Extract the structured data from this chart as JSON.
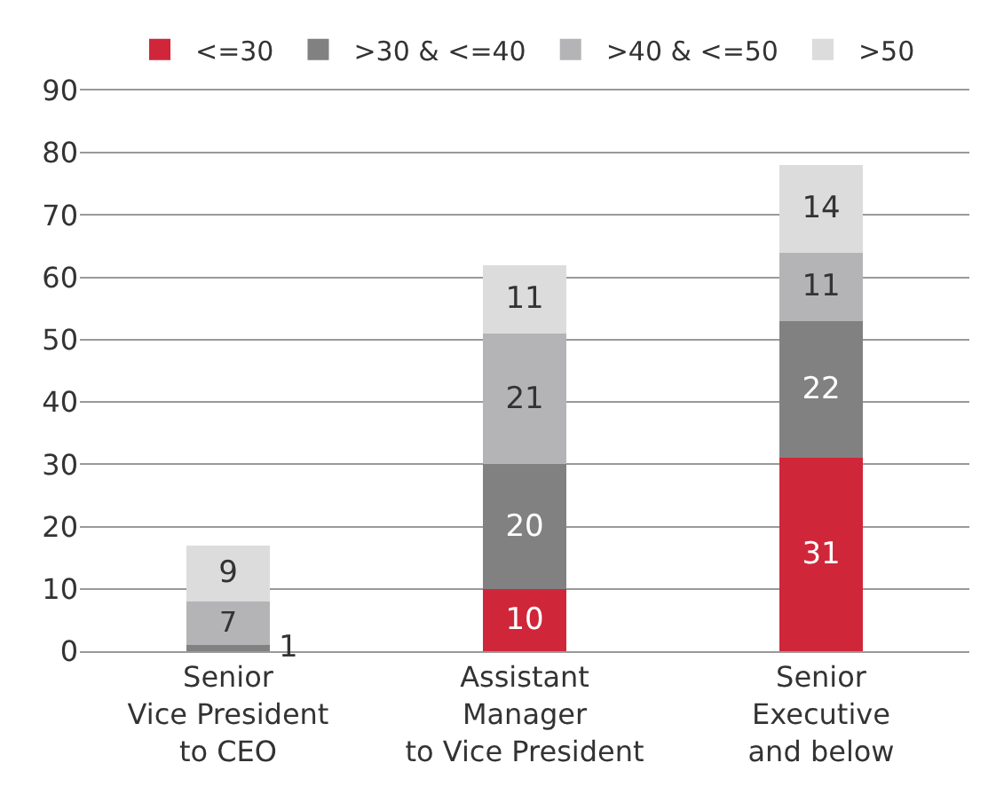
{
  "chart_data": {
    "type": "bar",
    "stacked": true,
    "data_labels": true,
    "grid": "y",
    "legend": "top",
    "categories": [
      "Senior\nVice President\nto CEO",
      "Assistant\nManager\nto Vice President",
      "Senior\nExecutive\nand below"
    ],
    "series": [
      {
        "name": "<=30",
        "color": "#d0263a",
        "values": [
          null,
          10,
          31
        ]
      },
      {
        "name": ">30 & <=40",
        "color": "#818181",
        "values": [
          1,
          20,
          22
        ]
      },
      {
        "name": ">40 & <=50",
        "color": "#b4b4b6",
        "values": [
          7,
          21,
          11
        ]
      },
      {
        "name": ">50",
        "color": "#dcdcdd",
        "values": [
          9,
          11,
          14
        ]
      }
    ],
    "ylim": [
      0,
      90
    ],
    "yticks": [
      0,
      10,
      20,
      30,
      40,
      50,
      60,
      70,
      80,
      90
    ]
  }
}
